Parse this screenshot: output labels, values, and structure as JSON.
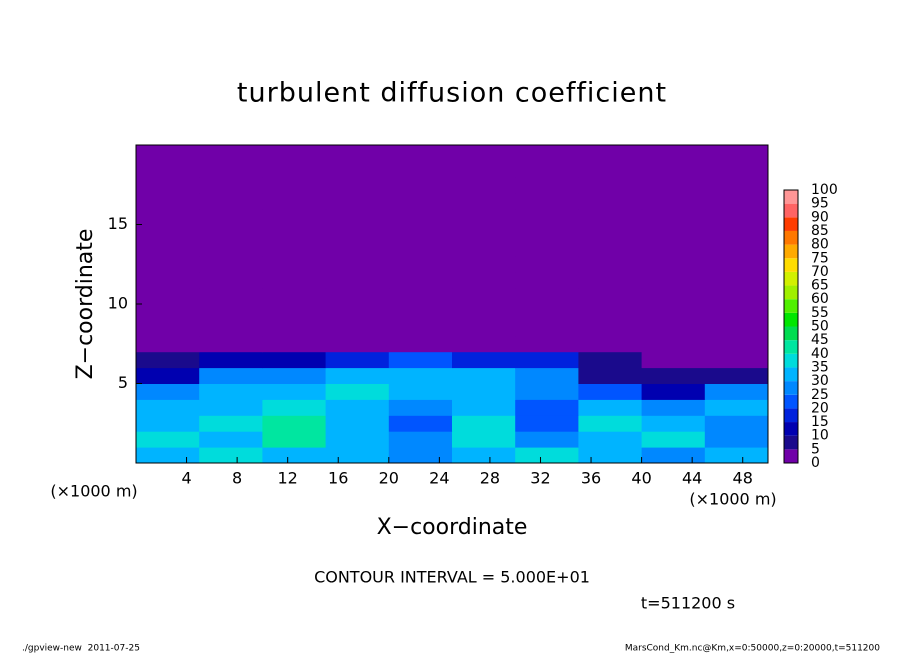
{
  "chart_data": {
    "type": "heatmap",
    "title": "turbulent diffusion coefficient",
    "x_label": "X−coordinate",
    "y_label": "Z−coordinate",
    "x_unit": "(×1000 m)",
    "y_unit": "(×1000 m)",
    "xlim": [
      0,
      50
    ],
    "ylim": [
      0,
      20
    ],
    "xticks": [
      4,
      8,
      12,
      16,
      20,
      24,
      28,
      32,
      36,
      40,
      44,
      48
    ],
    "yticks": [
      5,
      10,
      15
    ],
    "x_edges": [
      0,
      5,
      10,
      15,
      20,
      25,
      30,
      35,
      40,
      45,
      50
    ],
    "y_edges": [
      0,
      1,
      2,
      3,
      4,
      5,
      6,
      7,
      8,
      9,
      10,
      11,
      12,
      13,
      14,
      15,
      16,
      17,
      18,
      19,
      20
    ],
    "values": [
      [
        30,
        35,
        30,
        30,
        25,
        30,
        35,
        30,
        25,
        30
      ],
      [
        35,
        30,
        40,
        30,
        25,
        35,
        25,
        30,
        35,
        25
      ],
      [
        30,
        35,
        40,
        30,
        20,
        35,
        20,
        35,
        30,
        25
      ],
      [
        30,
        30,
        35,
        30,
        25,
        30,
        20,
        30,
        25,
        30
      ],
      [
        25,
        30,
        30,
        35,
        30,
        30,
        25,
        20,
        10,
        25
      ],
      [
        10,
        25,
        25,
        30,
        30,
        30,
        25,
        5,
        5,
        5
      ],
      [
        5,
        10,
        10,
        15,
        20,
        15,
        15,
        5,
        0,
        0
      ],
      [
        0,
        0,
        0,
        0,
        0,
        0,
        0,
        0,
        0,
        0
      ],
      [
        0,
        0,
        0,
        0,
        0,
        0,
        0,
        0,
        0,
        0
      ],
      [
        0,
        0,
        0,
        0,
        0,
        0,
        0,
        0,
        0,
        0
      ],
      [
        0,
        0,
        0,
        0,
        0,
        0,
        0,
        0,
        0,
        0
      ],
      [
        0,
        0,
        0,
        0,
        0,
        0,
        0,
        0,
        0,
        0
      ],
      [
        0,
        0,
        0,
        0,
        0,
        0,
        0,
        0,
        0,
        0
      ],
      [
        0,
        0,
        0,
        0,
        0,
        0,
        0,
        0,
        0,
        0
      ],
      [
        0,
        0,
        0,
        0,
        0,
        0,
        0,
        0,
        0,
        0
      ],
      [
        0,
        0,
        0,
        0,
        0,
        0,
        0,
        0,
        0,
        0
      ],
      [
        0,
        0,
        0,
        0,
        0,
        0,
        0,
        0,
        0,
        0
      ],
      [
        0,
        0,
        0,
        0,
        0,
        0,
        0,
        0,
        0,
        0
      ],
      [
        0,
        0,
        0,
        0,
        0,
        0,
        0,
        0,
        0,
        0
      ],
      [
        0,
        0,
        0,
        0,
        0,
        0,
        0,
        0,
        0,
        0
      ]
    ],
    "levels": [
      0,
      5,
      10,
      15,
      20,
      25,
      30,
      35,
      40,
      45,
      50,
      55,
      60,
      65,
      70,
      75,
      80,
      85,
      90,
      95,
      100
    ],
    "colors": [
      "#7000a8",
      "#1a0a8c",
      "#0000b0",
      "#0022dd",
      "#0055ff",
      "#0088ff",
      "#00b4ff",
      "#00dcdc",
      "#00e6a0",
      "#00dc50",
      "#00e600",
      "#50f000",
      "#a0f000",
      "#d2f000",
      "#ffdc00",
      "#ffaa00",
      "#ff7800",
      "#ff3c00",
      "#ff6464",
      "#ff9696"
    ],
    "contour_note": "CONTOUR INTERVAL = 5.000E+01",
    "time_note": "t=511200 s",
    "footer_left": "./gpview-new  2011-07-25",
    "footer_right": "MarsCond_Km.nc@Km,x=0:50000,z=0:20000,t=511200"
  }
}
